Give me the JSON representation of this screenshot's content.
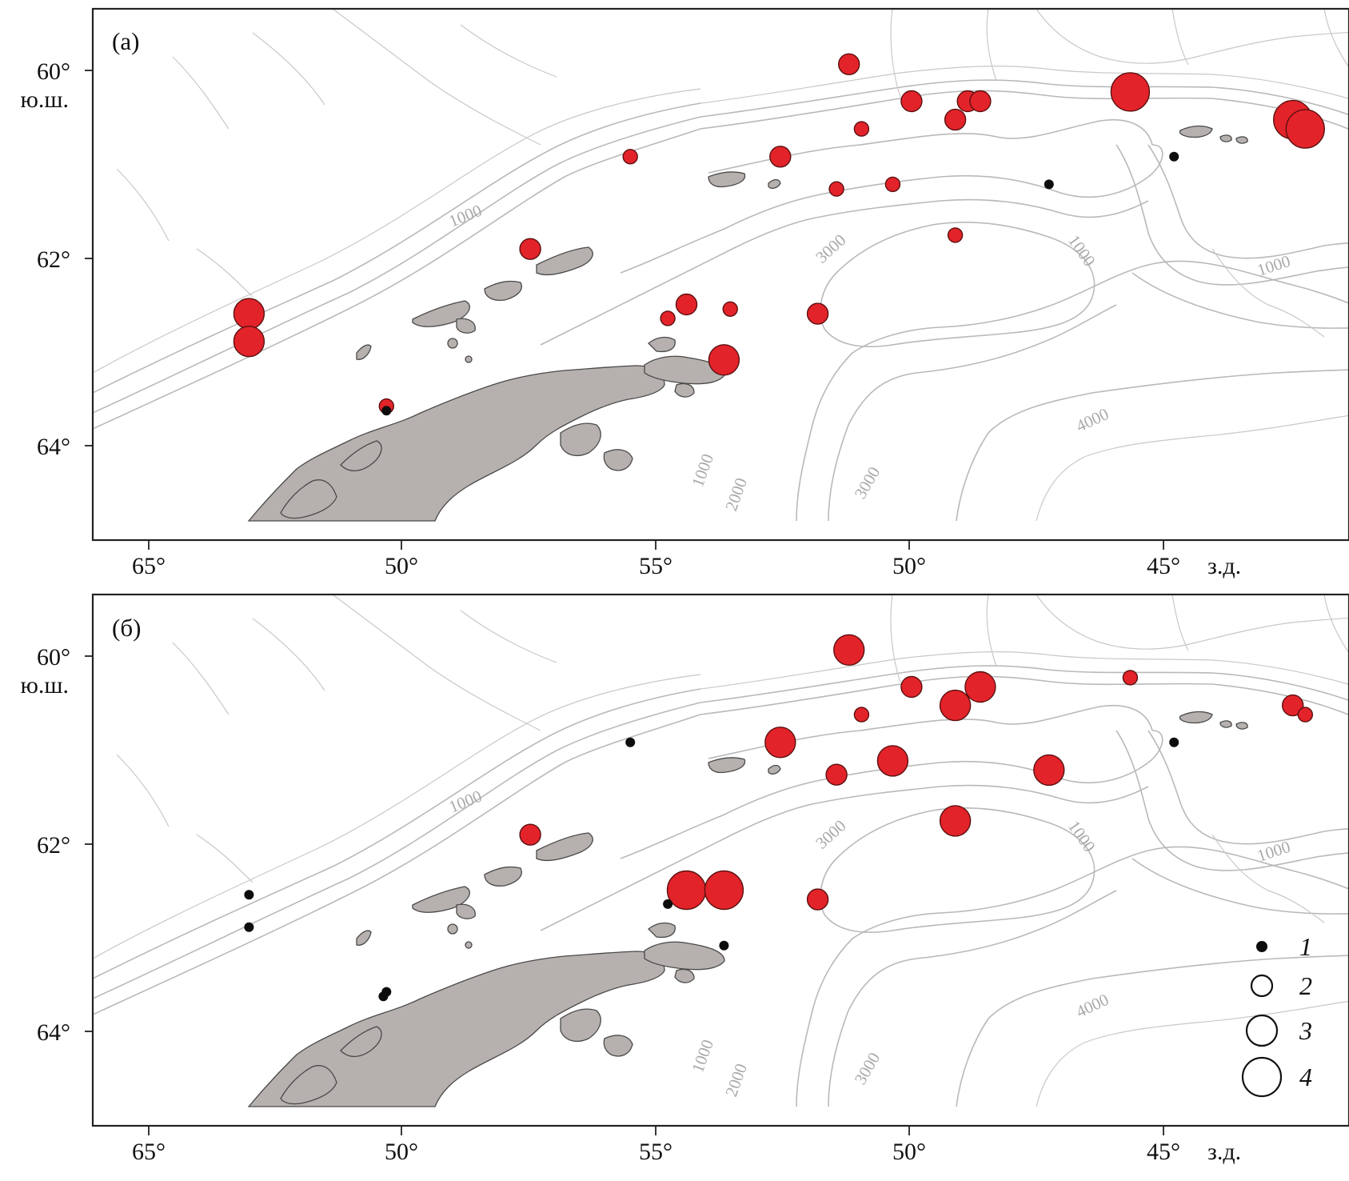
{
  "axis_units": {
    "lat": "ю.ш.",
    "lon": "з.д."
  },
  "lat_labels": [
    "60°",
    "62°",
    "64°"
  ],
  "lon_labels": [
    "65°",
    "50°",
    "55°",
    "50°",
    "45°"
  ],
  "depth_labels": [
    "1000",
    "3000",
    "1000",
    "1000",
    "4000",
    "1000",
    "2000",
    "3000"
  ],
  "panels": [
    {
      "label": "(а)",
      "stations": [
        {
          "lon": -59.1,
          "lat": 62.5,
          "size": 3
        },
        {
          "lon": -59.1,
          "lat": 62.8,
          "size": 3
        },
        {
          "lon": -56.9,
          "lat": 63.5,
          "size": 1
        },
        {
          "lon": -54.6,
          "lat": 61.8,
          "size": 2
        },
        {
          "lon": -53.0,
          "lat": 60.8,
          "size": 1
        },
        {
          "lon": -52.1,
          "lat": 62.4,
          "size": 2
        },
        {
          "lon": -51.4,
          "lat": 62.45,
          "size": 1
        },
        {
          "lon": -52.4,
          "lat": 62.55,
          "size": 1
        },
        {
          "lon": -51.5,
          "lat": 63.0,
          "size": 3
        },
        {
          "lon": -50.6,
          "lat": 60.8,
          "size": 2
        },
        {
          "lon": -50.0,
          "lat": 62.5,
          "size": 2
        },
        {
          "lon": -49.7,
          "lat": 61.15,
          "size": 1
        },
        {
          "lon": -49.5,
          "lat": 59.8,
          "size": 2
        },
        {
          "lon": -49.3,
          "lat": 60.5,
          "size": 1
        },
        {
          "lon": -48.8,
          "lat": 61.1,
          "size": 1
        },
        {
          "lon": -48.5,
          "lat": 60.2,
          "size": 2
        },
        {
          "lon": -47.8,
          "lat": 60.4,
          "size": 2
        },
        {
          "lon": -47.6,
          "lat": 60.2,
          "size": 2
        },
        {
          "lon": -47.4,
          "lat": 60.2,
          "size": 2
        },
        {
          "lon": -47.8,
          "lat": 61.65,
          "size": 1
        },
        {
          "lon": -45.0,
          "lat": 60.1,
          "size": 4
        },
        {
          "lon": -42.4,
          "lat": 60.4,
          "size": 4
        },
        {
          "lon": -42.2,
          "lat": 60.5,
          "size": 4
        }
      ],
      "absent_stations": [
        {
          "lon": -56.9,
          "lat": 63.55
        },
        {
          "lon": -46.3,
          "lat": 61.1
        },
        {
          "lon": -44.3,
          "lat": 60.8
        }
      ]
    },
    {
      "label": "(б)",
      "stations": [
        {
          "lon": -54.6,
          "lat": 61.8,
          "size": 2
        },
        {
          "lon": -52.1,
          "lat": 62.4,
          "size": 4
        },
        {
          "lon": -51.5,
          "lat": 62.4,
          "size": 4
        },
        {
          "lon": -50.0,
          "lat": 62.5,
          "size": 2
        },
        {
          "lon": -50.6,
          "lat": 60.8,
          "size": 3
        },
        {
          "lon": -49.7,
          "lat": 61.15,
          "size": 2
        },
        {
          "lon": -49.5,
          "lat": 59.8,
          "size": 3
        },
        {
          "lon": -49.3,
          "lat": 60.5,
          "size": 1
        },
        {
          "lon": -48.8,
          "lat": 61.0,
          "size": 3
        },
        {
          "lon": -48.5,
          "lat": 60.2,
          "size": 2
        },
        {
          "lon": -47.8,
          "lat": 60.4,
          "size": 3
        },
        {
          "lon": -47.4,
          "lat": 60.2,
          "size": 3
        },
        {
          "lon": -47.8,
          "lat": 61.65,
          "size": 3
        },
        {
          "lon": -46.3,
          "lat": 61.1,
          "size": 3
        },
        {
          "lon": -45.0,
          "lat": 60.1,
          "size": 1
        },
        {
          "lon": -42.4,
          "lat": 60.4,
          "size": 2
        },
        {
          "lon": -42.2,
          "lat": 60.5,
          "size": 1
        }
      ],
      "absent_stations": [
        {
          "lon": -59.1,
          "lat": 62.45
        },
        {
          "lon": -59.1,
          "lat": 62.8
        },
        {
          "lon": -56.9,
          "lat": 63.5
        },
        {
          "lon": -56.95,
          "lat": 63.55
        },
        {
          "lon": -53.0,
          "lat": 60.8
        },
        {
          "lon": -52.4,
          "lat": 62.55
        },
        {
          "lon": -51.5,
          "lat": 63.0
        },
        {
          "lon": -44.3,
          "lat": 60.8
        }
      ]
    }
  ],
  "legend": [
    {
      "label": "1",
      "kind": "dot"
    },
    {
      "label": "2",
      "kind": "circle"
    },
    {
      "label": "3",
      "kind": "circle"
    },
    {
      "label": "4",
      "kind": "circle"
    }
  ],
  "colors": {
    "station": "#e3232a",
    "absent": "#0d0d0d",
    "land": "#b6b1ae",
    "contour": "#b9b9b9"
  }
}
